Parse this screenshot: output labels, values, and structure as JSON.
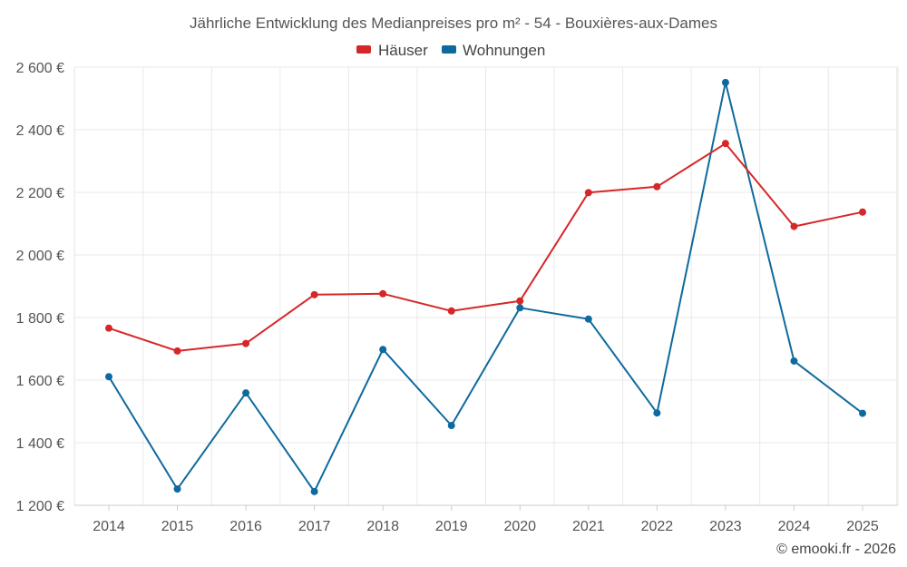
{
  "chart_data": {
    "type": "line",
    "title": "Jährliche Entwicklung des Medianpreises pro m² - 54 - Bouxières-aux-Dames",
    "categories": [
      "2014",
      "2015",
      "2016",
      "2017",
      "2018",
      "2019",
      "2020",
      "2021",
      "2022",
      "2023",
      "2024",
      "2025"
    ],
    "ylim": [
      1200,
      2600
    ],
    "yticks": [
      1200,
      1400,
      1600,
      1800,
      2000,
      2200,
      2400,
      2600
    ],
    "ytick_labels": [
      "1 200 €",
      "1 400 €",
      "1 600 €",
      "1 800 €",
      "2 000 €",
      "2 200 €",
      "2 400 €",
      "2 600 €"
    ],
    "series": [
      {
        "name": "Häuser",
        "color": "#d62728",
        "values": [
          1766,
          1693,
          1717,
          1873,
          1876,
          1821,
          1853,
          2199,
          2218,
          2356,
          2091,
          2137
        ]
      },
      {
        "name": "Wohnungen",
        "color": "#0e6a9e",
        "values": [
          1611,
          1252,
          1559,
          1244,
          1698,
          1455,
          1831,
          1795,
          1495,
          2551,
          1661,
          1494
        ]
      }
    ],
    "legend_position": "top-center",
    "grid": true
  },
  "credit": "© emooki.fr - 2026"
}
